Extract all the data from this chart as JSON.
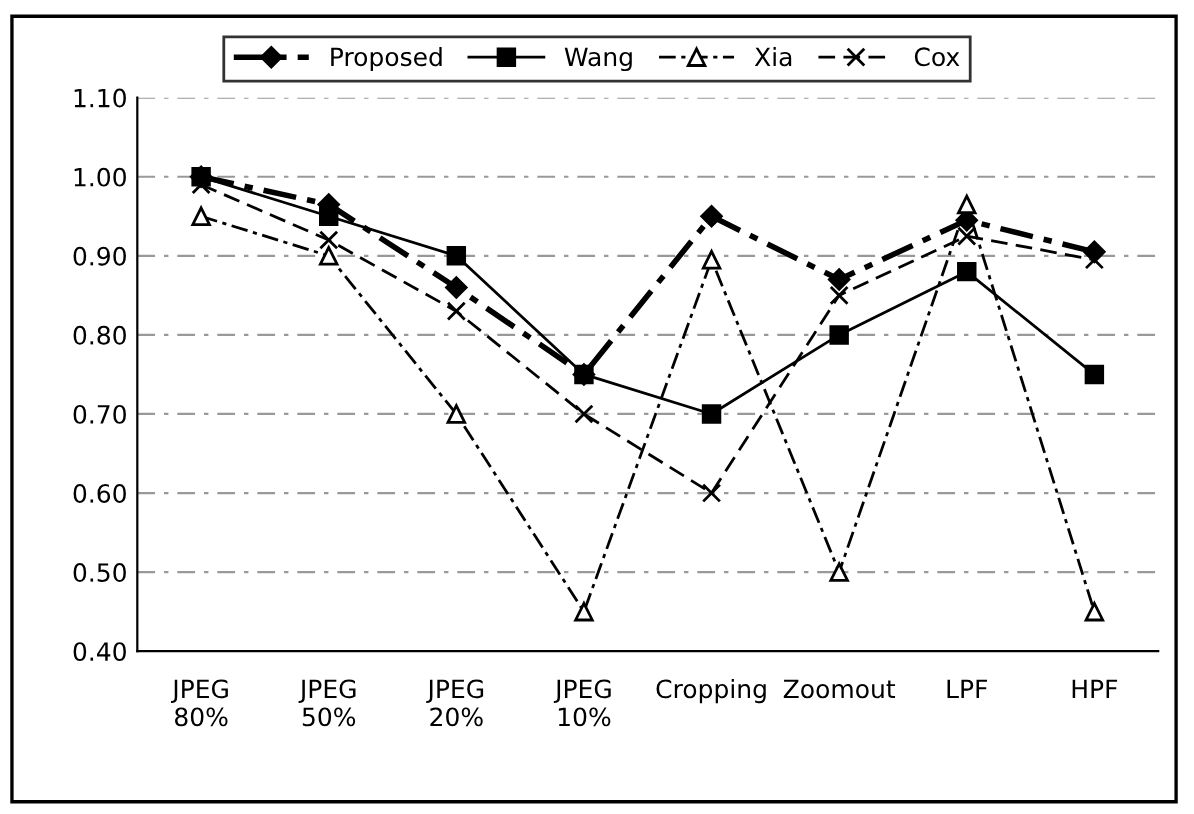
{
  "chart_data": {
    "type": "line",
    "categories": [
      "JPEG\n80%",
      "JPEG\n50%",
      "JPEG\n20%",
      "JPEG\n10%",
      "Cropping",
      "Zoomout",
      "LPF",
      "HPF"
    ],
    "series": [
      {
        "name": "Proposed",
        "color": "#000000",
        "marker": "diamond",
        "line_style": "dashdot",
        "values": [
          1.0,
          0.965,
          0.86,
          0.75,
          0.95,
          0.87,
          0.945,
          0.905
        ]
      },
      {
        "name": "Wang",
        "color": "#000000",
        "marker": "square",
        "line_style": "solid",
        "values": [
          1.0,
          0.95,
          0.9,
          0.75,
          0.7,
          0.8,
          0.88,
          0.75
        ]
      },
      {
        "name": "Xia",
        "color": "#000000",
        "marker": "triangle",
        "line_style": "dashdot",
        "values": [
          0.95,
          0.9,
          0.7,
          0.45,
          0.895,
          0.5,
          0.965,
          0.45
        ]
      },
      {
        "name": "Cox",
        "color": "#000000",
        "marker": "cross",
        "line_style": "dashed",
        "values": [
          0.99,
          0.92,
          0.83,
          0.7,
          0.6,
          0.85,
          0.925,
          0.895
        ]
      }
    ],
    "ylim": [
      0.4,
      1.1
    ],
    "yticks": [
      {
        "value": 0.4,
        "label": "0.40"
      },
      {
        "value": 0.5,
        "label": "0.50"
      },
      {
        "value": 0.6,
        "label": "0.60"
      },
      {
        "value": 0.7,
        "label": "0.70"
      },
      {
        "value": 0.8,
        "label": "0.80"
      },
      {
        "value": 0.9,
        "label": "0.90"
      },
      {
        "value": 1.0,
        "label": "1.00"
      },
      {
        "value": 1.1,
        "label": "1.10"
      }
    ],
    "grid": "y",
    "legend": "top"
  }
}
